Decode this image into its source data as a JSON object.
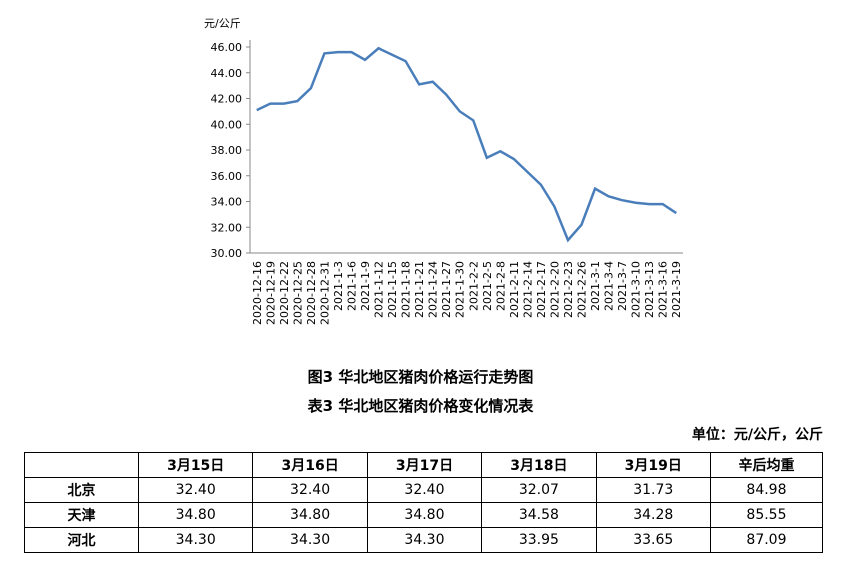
{
  "chart_data": {
    "type": "line",
    "y_unit": "元/公斤",
    "categories": [
      "2020-12-16",
      "2020-12-19",
      "2020-12-22",
      "2020-12-25",
      "2020-12-28",
      "2020-12-31",
      "2021-1-3",
      "2021-1-6",
      "2021-1-9",
      "2021-1-12",
      "2021-1-15",
      "2021-1-18",
      "2021-1-21",
      "2021-1-24",
      "2021-1-27",
      "2021-1-30",
      "2021-2-2",
      "2021-2-5",
      "2021-2-8",
      "2021-2-11",
      "2021-2-14",
      "2021-2-17",
      "2021-2-20",
      "2021-2-23",
      "2021-2-26",
      "2021-3-1",
      "2021-3-4",
      "2021-3-7",
      "2021-3-10",
      "2021-3-13",
      "2021-3-16",
      "2021-3-19"
    ],
    "values": [
      41.1,
      41.6,
      41.6,
      41.8,
      42.8,
      45.5,
      45.6,
      45.6,
      45.0,
      45.9,
      45.4,
      44.9,
      43.1,
      43.3,
      42.3,
      41.0,
      40.3,
      37.4,
      37.9,
      37.3,
      36.3,
      35.3,
      33.6,
      31.0,
      32.2,
      35.0,
      34.4,
      34.1,
      33.9,
      33.8,
      33.8,
      33.1
    ],
    "color": "#4a7ebb",
    "ylim": [
      30,
      46
    ],
    "yticks": [
      {
        "value": 30,
        "label": "30.00"
      },
      {
        "value": 32,
        "label": "32.00"
      },
      {
        "value": 34,
        "label": "34.00"
      },
      {
        "value": 36,
        "label": "36.00"
      },
      {
        "value": 38,
        "label": "38.00"
      },
      {
        "value": 40,
        "label": "40.00"
      },
      {
        "value": 42,
        "label": "42.00"
      },
      {
        "value": 44,
        "label": "44.00"
      },
      {
        "value": 46,
        "label": "46.00"
      }
    ]
  },
  "captions": {
    "figure": "图3 华北地区猪肉价格运行走势图",
    "table": "表3 华北地区猪肉价格变化情况表",
    "unit": "单位：元/公斤，公斤"
  },
  "table": {
    "header": [
      "3月15日",
      "3月16日",
      "3月17日",
      "3月18日",
      "3月19日",
      "辛后均重"
    ],
    "rows": [
      [
        "北京",
        "32.40",
        "32.40",
        "32.40",
        "32.07",
        "31.73",
        "84.98"
      ],
      [
        "天津",
        "34.80",
        "34.80",
        "34.80",
        "34.58",
        "34.28",
        "85.55"
      ],
      [
        "河北",
        "34.30",
        "34.30",
        "34.30",
        "33.95",
        "33.65",
        "87.09"
      ]
    ]
  }
}
